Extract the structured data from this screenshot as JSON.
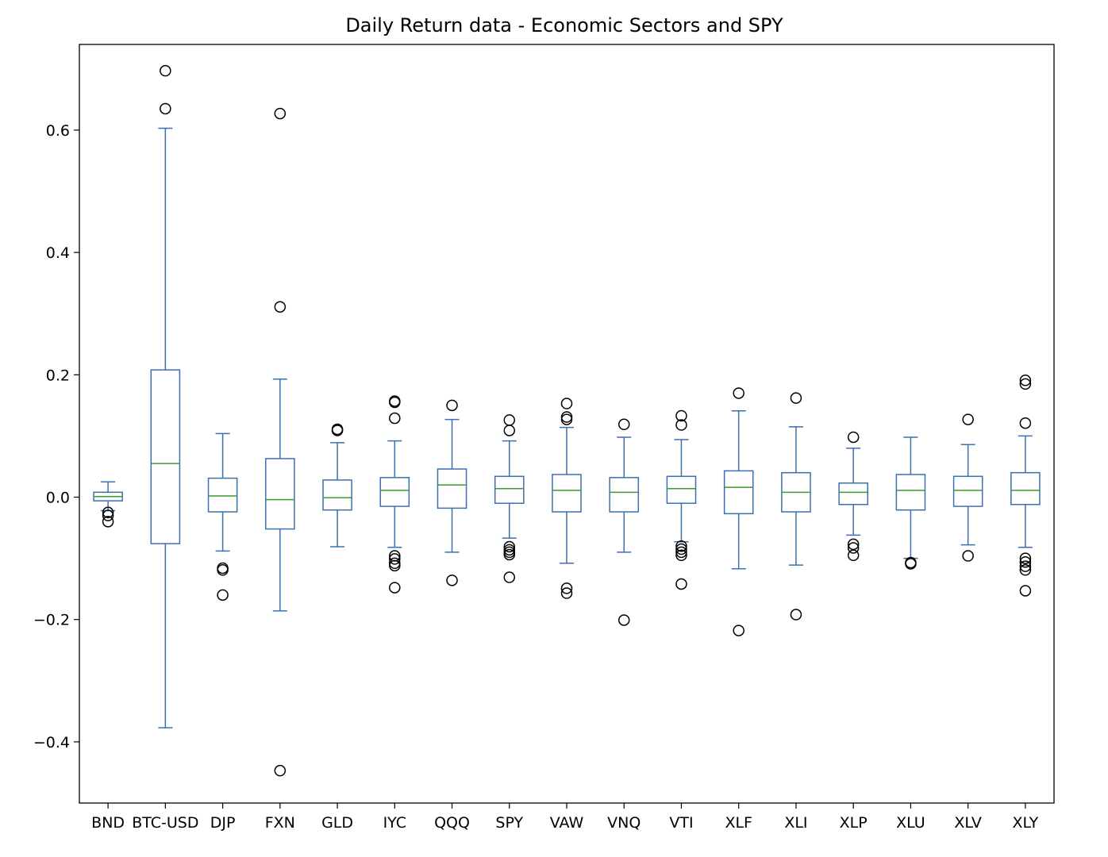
{
  "chart_data": {
    "type": "box",
    "title": "Daily Return data - Economic Sectors and SPY",
    "xlabel": "",
    "ylabel": "",
    "ylim": [
      -0.5,
      0.74
    ],
    "yticks": [
      -0.4,
      -0.2,
      0.0,
      0.2,
      0.4,
      0.6
    ],
    "ytick_labels": [
      "−0.4",
      "−0.2",
      "0.0",
      "0.2",
      "0.4",
      "0.6"
    ],
    "grid": false,
    "colors": {
      "box": "#3a6fb0",
      "median": "#3c9a2f",
      "outlier": "#000000"
    },
    "boxes": [
      {
        "name": "BND",
        "whislo": -0.022,
        "q1": -0.006,
        "med": 0.001,
        "q3": 0.008,
        "whishi": 0.025,
        "fliers": [
          -0.025,
          -0.03,
          -0.04
        ]
      },
      {
        "name": "BTC-USD",
        "whislo": -0.377,
        "q1": -0.076,
        "med": 0.055,
        "q3": 0.208,
        "whishi": 0.603,
        "fliers": [
          0.697,
          0.635
        ]
      },
      {
        "name": "DJP",
        "whislo": -0.088,
        "q1": -0.024,
        "med": 0.002,
        "q3": 0.031,
        "whishi": 0.104,
        "fliers": [
          -0.116,
          -0.119,
          -0.16
        ]
      },
      {
        "name": "FXN",
        "whislo": -0.186,
        "q1": -0.052,
        "med": -0.004,
        "q3": 0.063,
        "whishi": 0.193,
        "fliers": [
          0.627,
          0.311,
          -0.447
        ]
      },
      {
        "name": "GLD",
        "whislo": -0.081,
        "q1": -0.021,
        "med": -0.001,
        "q3": 0.028,
        "whishi": 0.089,
        "fliers": [
          0.109,
          0.111
        ]
      },
      {
        "name": "IYC",
        "whislo": -0.082,
        "q1": -0.015,
        "med": 0.011,
        "q3": 0.032,
        "whishi": 0.092,
        "fliers": [
          0.155,
          0.157,
          0.129,
          -0.096,
          -0.101,
          -0.108,
          -0.112,
          -0.148
        ]
      },
      {
        "name": "QQQ",
        "whislo": -0.09,
        "q1": -0.018,
        "med": 0.02,
        "q3": 0.046,
        "whishi": 0.127,
        "fliers": [
          0.15,
          -0.136
        ]
      },
      {
        "name": "SPY",
        "whislo": -0.067,
        "q1": -0.01,
        "med": 0.014,
        "q3": 0.034,
        "whishi": 0.092,
        "fliers": [
          0.126,
          0.109,
          -0.081,
          -0.086,
          -0.09,
          -0.094,
          -0.131
        ]
      },
      {
        "name": "VAW",
        "whislo": -0.108,
        "q1": -0.024,
        "med": 0.011,
        "q3": 0.037,
        "whishi": 0.114,
        "fliers": [
          0.153,
          0.131,
          0.127,
          -0.149,
          -0.157
        ]
      },
      {
        "name": "VNQ",
        "whislo": -0.09,
        "q1": -0.024,
        "med": 0.008,
        "q3": 0.032,
        "whishi": 0.098,
        "fliers": [
          0.119,
          -0.201
        ]
      },
      {
        "name": "VTI",
        "whislo": -0.073,
        "q1": -0.01,
        "med": 0.014,
        "q3": 0.034,
        "whishi": 0.094,
        "fliers": [
          0.133,
          0.118,
          -0.08,
          -0.085,
          -0.09,
          -0.095,
          -0.142
        ]
      },
      {
        "name": "XLF",
        "whislo": -0.117,
        "q1": -0.027,
        "med": 0.016,
        "q3": 0.043,
        "whishi": 0.141,
        "fliers": [
          0.17,
          -0.218
        ]
      },
      {
        "name": "XLI",
        "whislo": -0.111,
        "q1": -0.024,
        "med": 0.008,
        "q3": 0.04,
        "whishi": 0.115,
        "fliers": [
          0.162,
          -0.192
        ]
      },
      {
        "name": "XLP",
        "whislo": -0.062,
        "q1": -0.012,
        "med": 0.008,
        "q3": 0.023,
        "whishi": 0.08,
        "fliers": [
          0.098,
          -0.077,
          -0.083,
          -0.095
        ]
      },
      {
        "name": "XLU",
        "whislo": -0.1,
        "q1": -0.021,
        "med": 0.011,
        "q3": 0.037,
        "whishi": 0.098,
        "fliers": [
          -0.107,
          -0.109
        ]
      },
      {
        "name": "XLV",
        "whislo": -0.078,
        "q1": -0.015,
        "med": 0.011,
        "q3": 0.034,
        "whishi": 0.086,
        "fliers": [
          0.127,
          -0.096
        ]
      },
      {
        "name": "XLY",
        "whislo": -0.082,
        "q1": -0.012,
        "med": 0.011,
        "q3": 0.04,
        "whishi": 0.1,
        "fliers": [
          0.191,
          0.185,
          0.121,
          -0.1,
          -0.106,
          -0.113,
          -0.119,
          -0.153
        ]
      }
    ]
  }
}
